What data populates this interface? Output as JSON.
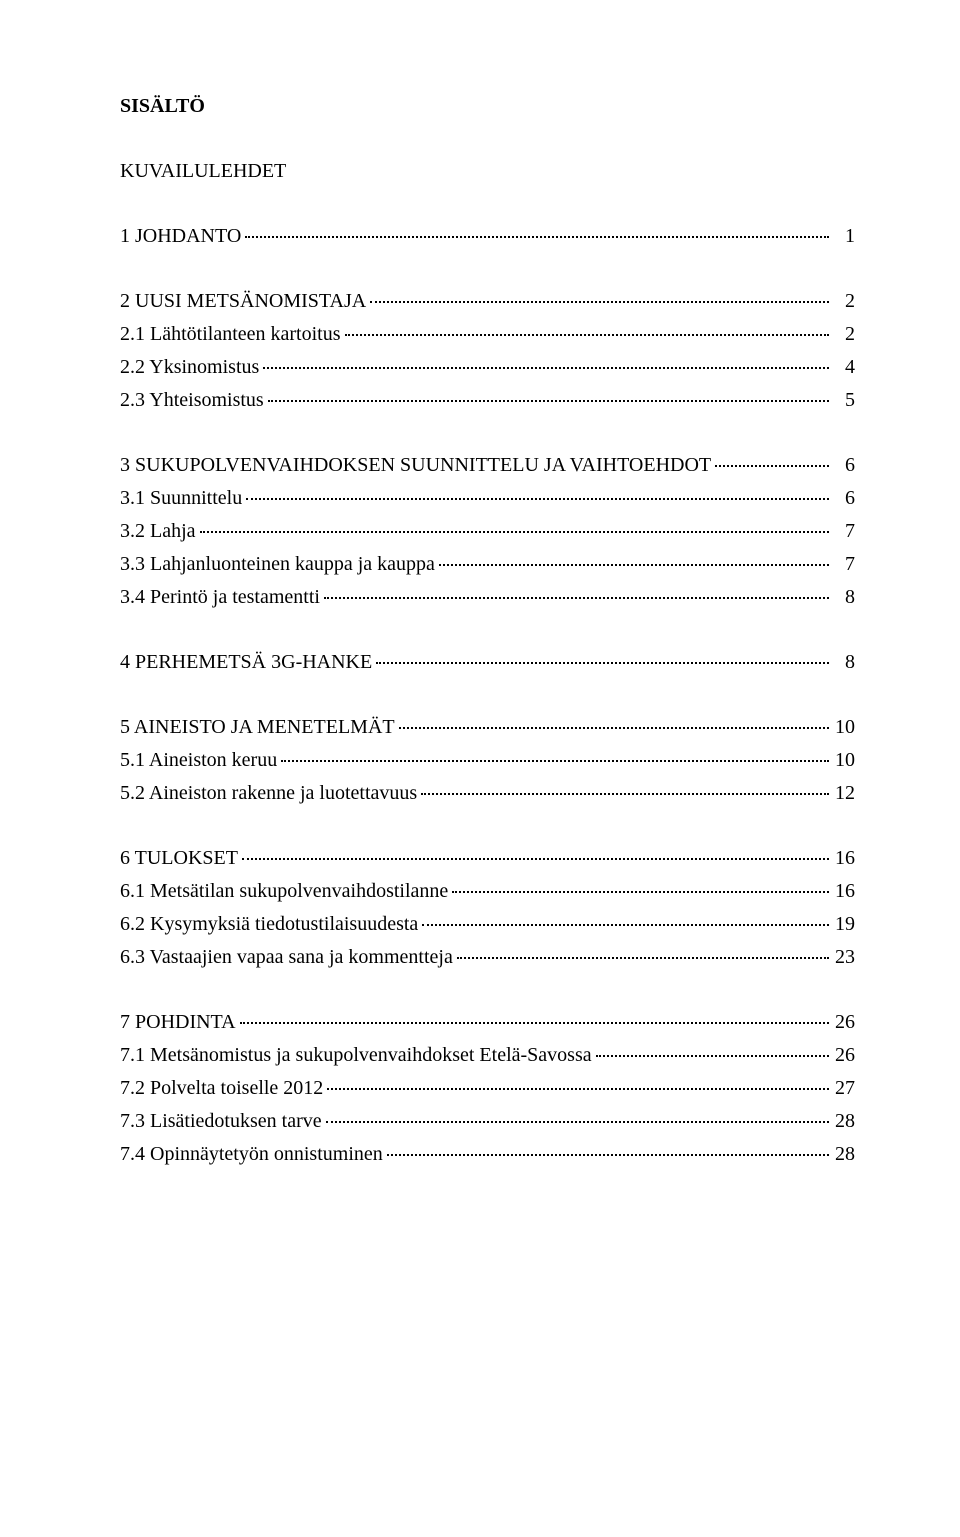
{
  "title": "SISÄLTÖ",
  "subtitle": "KUVAILULEHDET",
  "font_family": "Times New Roman",
  "font_size_pt": 15,
  "colors": {
    "text": "#000000",
    "background": "#ffffff",
    "leader": "#000000"
  },
  "groups": [
    {
      "entries": [
        {
          "level": "top",
          "text": "1 JOHDANTO",
          "page": "1"
        }
      ]
    },
    {
      "entries": [
        {
          "level": "top",
          "text": "2 UUSI METSÄNOMISTAJA",
          "page": "2"
        },
        {
          "level": "sub",
          "text": "2.1 Lähtötilanteen kartoitus",
          "page": "2"
        },
        {
          "level": "sub",
          "text": "2.2 Yksinomistus",
          "page": "4"
        },
        {
          "level": "sub",
          "text": "2.3 Yhteisomistus",
          "page": "5"
        }
      ]
    },
    {
      "entries": [
        {
          "level": "top",
          "text": "3 SUKUPOLVENVAIHDOKSEN SUUNNITTELU JA VAIHTOEHDOT",
          "page": "6"
        },
        {
          "level": "sub",
          "text": "3.1 Suunnittelu",
          "page": "6"
        },
        {
          "level": "sub",
          "text": "3.2 Lahja",
          "page": "7"
        },
        {
          "level": "sub",
          "text": "3.3 Lahjanluonteinen kauppa ja kauppa",
          "page": "7"
        },
        {
          "level": "sub",
          "text": "3.4 Perintö ja testamentti",
          "page": "8"
        }
      ]
    },
    {
      "entries": [
        {
          "level": "top",
          "text": "4 PERHEMETSÄ 3G-HANKE",
          "page": "8"
        }
      ]
    },
    {
      "entries": [
        {
          "level": "top",
          "text": "5 AINEISTO JA MENETELMÄT",
          "page": "10"
        },
        {
          "level": "sub",
          "text": "5.1 Aineiston keruu",
          "page": "10"
        },
        {
          "level": "sub",
          "text": "5.2 Aineiston rakenne ja luotettavuus",
          "page": "12"
        }
      ]
    },
    {
      "entries": [
        {
          "level": "top",
          "text": "6 TULOKSET",
          "page": "16"
        },
        {
          "level": "sub",
          "text": "6.1 Metsätilan sukupolvenvaihdostilanne",
          "page": "16"
        },
        {
          "level": "sub",
          "text": "6.2 Kysymyksiä tiedotustilaisuudesta",
          "page": "19"
        },
        {
          "level": "sub",
          "text": "6.3 Vastaajien vapaa sana ja kommentteja",
          "page": "23"
        }
      ]
    },
    {
      "entries": [
        {
          "level": "top",
          "text": "7 POHDINTA",
          "page": "26"
        },
        {
          "level": "sub",
          "text": "7.1 Metsänomistus ja sukupolvenvaihdokset Etelä-Savossa",
          "page": "26"
        },
        {
          "level": "sub",
          "text": "7.2 Polvelta toiselle 2012",
          "page": "27"
        },
        {
          "level": "sub",
          "text": "7.3 Lisätiedotuksen tarve",
          "page": "28"
        },
        {
          "level": "sub",
          "text": "7.4 Opinnäytetyön onnistuminen",
          "page": "28"
        }
      ]
    }
  ]
}
